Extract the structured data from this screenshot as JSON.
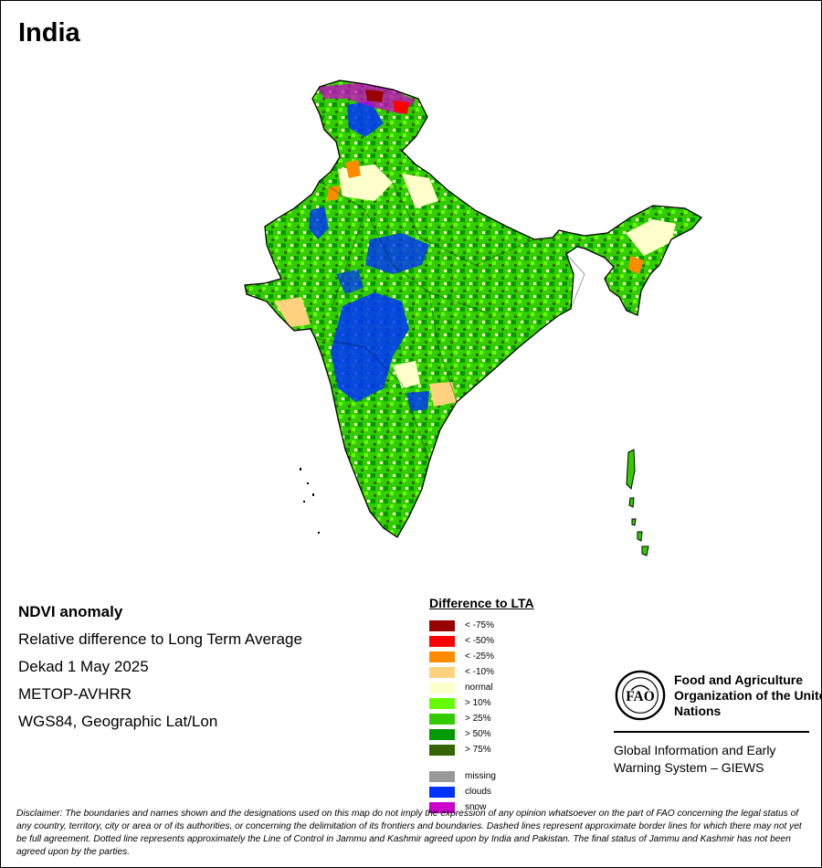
{
  "title": "India",
  "info": {
    "line1": "NDVI anomaly",
    "line2": "Relative difference to Long Term Average",
    "line3": "Dekad 1 May 2025",
    "line4": "METOP-AVHRR",
    "line5": "WGS84, Geographic Lat/Lon"
  },
  "legend": {
    "title": "Difference to LTA",
    "classes": [
      {
        "label": "< -75%",
        "color": "#990000"
      },
      {
        "label": "< -50%",
        "color": "#ff0000"
      },
      {
        "label": "< -25%",
        "color": "#ff8c00"
      },
      {
        "label": "< -10%",
        "color": "#ffd27f"
      },
      {
        "label": "normal",
        "color": "#ffffcc"
      },
      {
        "label": "> 10%",
        "color": "#66ff00"
      },
      {
        "label": "> 25%",
        "color": "#33cc00"
      },
      {
        "label": "> 50%",
        "color": "#009900"
      },
      {
        "label": "> 75%",
        "color": "#336600"
      }
    ],
    "extra": [
      {
        "label": "missing",
        "color": "#999999"
      },
      {
        "label": "clouds",
        "color": "#0033ff"
      },
      {
        "label": "snow",
        "color": "#cc00cc"
      }
    ]
  },
  "org": {
    "name": "Food and Agriculture Organization of the United Nations",
    "system": "Global Information and Early Warning System – GIEWS",
    "logo_text": "FAO",
    "logo_motto": "FIAT PANIS"
  },
  "disclaimer": "Disclaimer: The boundaries and names shown and the designations used on this map do not imply the expression of any opinion whatsoever on the part of FAO concerning the legal status of any country, territory, city or area or of its authorities, or concerning the delimitation of its frontiers and boundaries. Dashed lines represent approximate border lines for which there may not yet be full agreement. Dotted line represents approximately the Line of Control in Jammu and Kashmir agreed upon by India and Pakistan. The final status of Jammu and Kashmir has not been agreed upon by the parties."
}
